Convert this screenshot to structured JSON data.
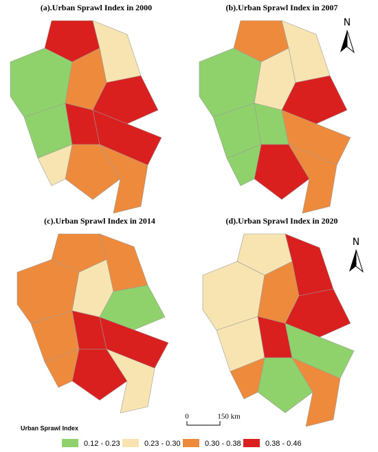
{
  "panels": [
    {
      "title": "(a).Urban Sprawl Index in 2000"
    },
    {
      "title": "(b).Urban Sprawl Index in 2007"
    },
    {
      "title": "(c).Urban Sprawl Index in 2014"
    },
    {
      "title": "(d).Urban Sprawl Index in 2020"
    }
  ],
  "north_arrows": [
    "N",
    "N"
  ],
  "scale_bar": {
    "start": "0",
    "end": "150 km"
  },
  "legend": {
    "title": "Urban Sprawl Index",
    "items": [
      {
        "label": "0.12 - 0.23",
        "color": "#8fd16a"
      },
      {
        "label": "0.23 - 0.30",
        "color": "#f7e4b0"
      },
      {
        "label": "0.30 - 0.38",
        "color": "#ee8a3b"
      },
      {
        "label": "0.38 - 0.46",
        "color": "#d9201f"
      }
    ]
  }
}
